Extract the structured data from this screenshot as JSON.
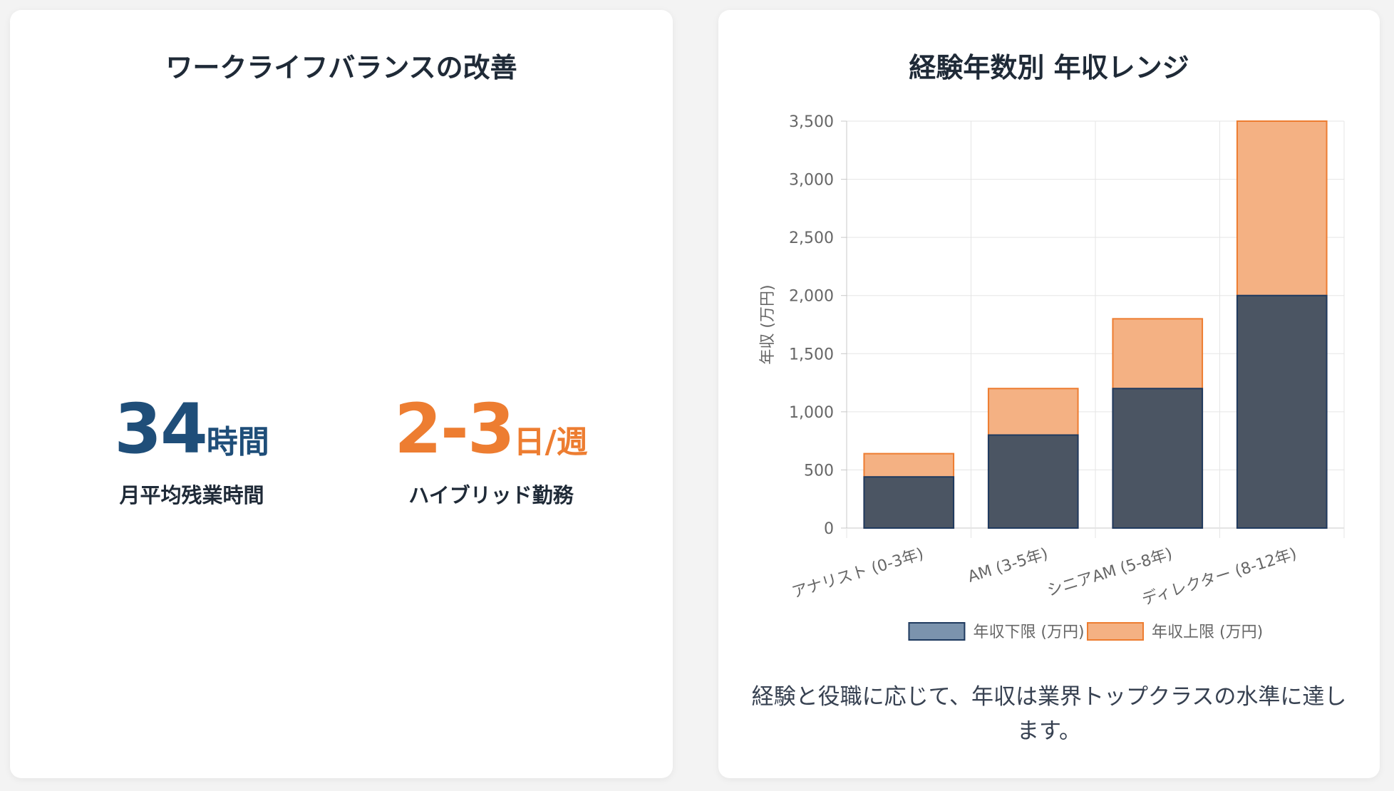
{
  "left_card": {
    "title": "ワークライフバランスの改善",
    "stats": [
      {
        "value": "34",
        "unit": "時間",
        "label": "月平均残業時間",
        "color": "#1f4e79"
      },
      {
        "value": "2-3",
        "unit": "日/週",
        "label": "ハイブリッド勤務",
        "color": "#ed7d31"
      }
    ]
  },
  "right_card": {
    "title": "経験年数別 年収レンジ",
    "caption": "経験と役職に応じて、年収は業界トップクラスの水準に達します。"
  },
  "chart_data": {
    "type": "bar",
    "stacked": false,
    "title": "",
    "xlabel": "",
    "ylabel": "年収 (万円)",
    "ylim": [
      0,
      3500
    ],
    "yticks": [
      0,
      500,
      1000,
      1500,
      2000,
      2500,
      3000,
      3500
    ],
    "ytick_labels": [
      "0",
      "500",
      "1,000",
      "1,500",
      "2,000",
      "2,500",
      "3,000",
      "3,500"
    ],
    "categories": [
      "アナリスト (0-3年)",
      "AM (3-5年)",
      "シニアAM (5-8年)",
      "ディレクター (8-12年)"
    ],
    "series": [
      {
        "name": "年収下限 (万円)",
        "values": [
          440,
          800,
          1200,
          2000
        ],
        "fill": "#4b5563",
        "stroke": "#1f3a5f",
        "legend_fill": "#7b93ad"
      },
      {
        "name": "年収上限 (万円)",
        "values": [
          640,
          1200,
          1800,
          3500
        ],
        "fill": "#f4b183",
        "stroke": "#ed7d31",
        "legend_fill": "#f4b183"
      }
    ],
    "grid": true,
    "legend": "bottom"
  }
}
